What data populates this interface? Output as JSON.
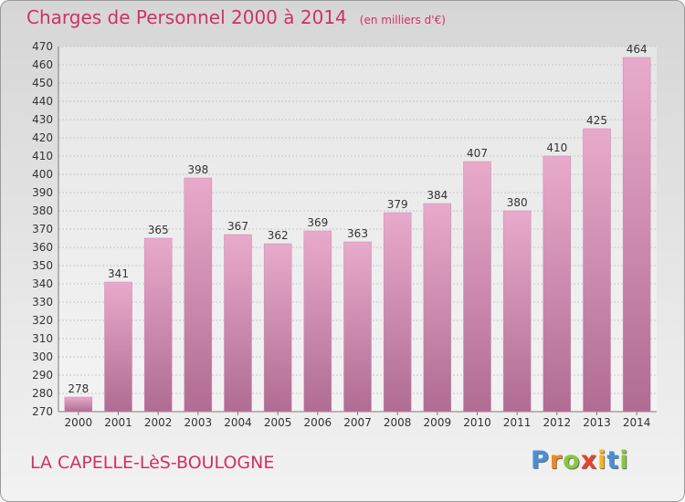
{
  "chart_data": {
    "type": "bar",
    "title": "Charges de Personnel 2000 à 2014",
    "subtitle": "(en milliers d'€)",
    "categories": [
      "2000",
      "2001",
      "2002",
      "2003",
      "2004",
      "2005",
      "2006",
      "2007",
      "2008",
      "2009",
      "2010",
      "2011",
      "2012",
      "2013",
      "2014"
    ],
    "values": [
      278,
      341,
      365,
      398,
      367,
      362,
      369,
      363,
      379,
      384,
      407,
      380,
      410,
      425,
      464
    ],
    "ylim": [
      270,
      470
    ],
    "ytick_step": 10,
    "grid": true,
    "bar_color_top": "#e8aacb",
    "bar_color_bottom": "#b06c92"
  },
  "footer_label": "LA CAPELLE-LèS-BOULOGNE",
  "logo": {
    "letters": [
      {
        "char": "P",
        "color": "#4a8fd6"
      },
      {
        "char": "r",
        "color": "#f08a1c"
      },
      {
        "char": "o",
        "color": "#8cc63e"
      },
      {
        "char": "x",
        "color": "#e8442c"
      },
      {
        "char": "i",
        "color": "#f6b61c"
      },
      {
        "char": "t",
        "color": "#4a8fd6"
      },
      {
        "char": "i",
        "color": "#8cc63e"
      }
    ]
  }
}
